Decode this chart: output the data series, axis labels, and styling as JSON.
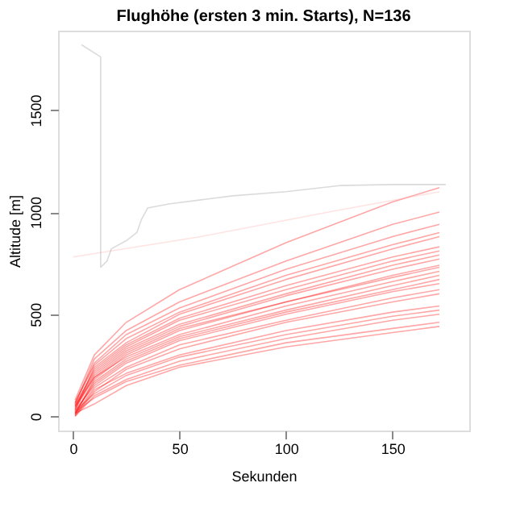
{
  "chart_data": {
    "type": "line",
    "title": "Flughöhe (ersten 3 min. Starts), N=136",
    "xlabel": "Sekunden",
    "ylabel": "Altitude [m]",
    "x": [
      1,
      10,
      25,
      50,
      100,
      150,
      172
    ],
    "xlim": [
      -7,
      186
    ],
    "ylim": [
      -70,
      1889
    ],
    "xticks": [
      0,
      50,
      100,
      150
    ],
    "yticks": [
      0,
      500,
      1000,
      1500
    ],
    "grid": false,
    "legend": false,
    "marker": "none",
    "line_style": "solid",
    "series": [
      {
        "color": "#ff0000",
        "values": [
          0,
          120,
          230,
          330,
          460,
          560,
          600
        ]
      },
      {
        "color": "#ff0000",
        "values": [
          10,
          180,
          300,
          420,
          560,
          680,
          730
        ]
      },
      {
        "color": "#ff0000",
        "values": [
          20,
          90,
          170,
          250,
          360,
          430,
          460
        ]
      },
      {
        "color": "#ff0000",
        "values": [
          50,
          230,
          350,
          480,
          640,
          780,
          830
        ]
      },
      {
        "color": "#ff0000",
        "values": [
          30,
          150,
          260,
          370,
          500,
          610,
          650
        ]
      },
      {
        "color": "#ff0000",
        "values": [
          60,
          280,
          420,
          560,
          760,
          940,
          1000
        ]
      },
      {
        "color": "#ff0000",
        "values": [
          5,
          130,
          210,
          300,
          420,
          510,
          540
        ]
      },
      {
        "color": "#ff0000",
        "values": [
          40,
          200,
          320,
          440,
          590,
          720,
          770
        ]
      },
      {
        "color": "#ff0000",
        "values": [
          80,
          300,
          460,
          620,
          850,
          1050,
          1120
        ]
      },
      {
        "color": "#ff0000",
        "values": [
          15,
          170,
          280,
          390,
          520,
          640,
          690
        ]
      },
      {
        "color": "#ff0000",
        "values": [
          25,
          110,
          200,
          290,
          400,
          490,
          520
        ]
      },
      {
        "color": "#ff0000",
        "values": [
          70,
          250,
          380,
          510,
          690,
          840,
          900
        ]
      },
      {
        "color": "#ff0000",
        "values": [
          35,
          190,
          290,
          400,
          540,
          660,
          710
        ]
      },
      {
        "color": "#ff0000",
        "values": [
          10,
          140,
          240,
          350,
          470,
          580,
          620
        ]
      },
      {
        "color": "#ff0000",
        "values": [
          55,
          220,
          340,
          470,
          620,
          760,
          810
        ]
      },
      {
        "color": "#ff0000",
        "values": [
          45,
          210,
          330,
          450,
          600,
          740,
          790
        ]
      },
      {
        "color": "#ff0000",
        "values": [
          20,
          160,
          270,
          380,
          510,
          620,
          670
        ]
      },
      {
        "color": "#ff0000",
        "values": [
          65,
          260,
          400,
          530,
          720,
          880,
          940
        ]
      },
      {
        "color": "#ff0000",
        "values": [
          0,
          100,
          180,
          270,
          380,
          470,
          500
        ]
      },
      {
        "color": "#ff0000",
        "values": [
          30,
          240,
          360,
          500,
          670,
          820,
          880
        ]
      },
      {
        "color": "#ff0000",
        "values": [
          15,
          60,
          150,
          240,
          340,
          410,
          440
        ]
      },
      {
        "color": "#ff0000",
        "values": [
          50,
          190,
          310,
          430,
          560,
          690,
          740
        ]
      },
      {
        "color": "#ffb0b0",
        "x": [
          0,
          60,
          120,
          172
        ],
        "values": [
          780,
          880,
          1000,
          1100
        ]
      },
      {
        "color": "#999999",
        "x": [
          4,
          13,
          13,
          16,
          18,
          25,
          30,
          32,
          35,
          45,
          60,
          75,
          100,
          125,
          150,
          175
        ],
        "values": [
          1820,
          1760,
          730,
          760,
          820,
          860,
          900,
          960,
          1020,
          1040,
          1060,
          1080,
          1100,
          1130,
          1135,
          1135
        ]
      }
    ]
  }
}
